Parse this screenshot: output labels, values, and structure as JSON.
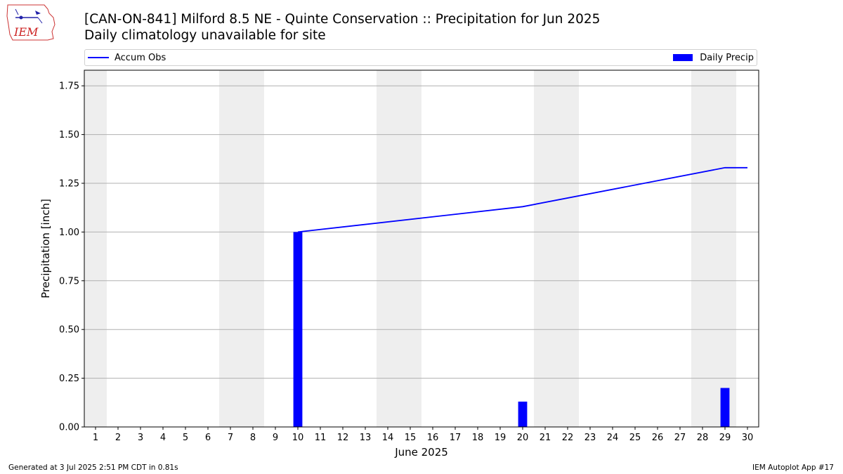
{
  "header": {
    "logo_text": "IEM",
    "title": "[CAN-ON-841] Milford 8.5 NE - Quinte Conservation :: Precipitation for Jun 2025",
    "subtitle": "Daily climatology unavailable for site"
  },
  "legend": {
    "line_label": "Accum Obs",
    "bar_label": "Daily Precip"
  },
  "footer": {
    "left": "Generated at 3 Jul 2025 2:51 PM CDT in 0.81s",
    "right": "IEM Autoplot App #17"
  },
  "colors": {
    "series": "#0000ff",
    "weekend_shade": "#eeeeee",
    "grid": "#b0b0b0"
  },
  "chart_data": {
    "type": "bar",
    "xlabel": "June 2025",
    "ylabel": "Precipitation [inch]",
    "x": [
      1,
      2,
      3,
      4,
      5,
      6,
      7,
      8,
      9,
      10,
      11,
      12,
      13,
      14,
      15,
      16,
      17,
      18,
      19,
      20,
      21,
      22,
      23,
      24,
      25,
      26,
      27,
      28,
      29,
      30
    ],
    "xlim": [
      0.5,
      30.5
    ],
    "ylim": [
      0,
      1.83
    ],
    "yticks": [
      0,
      0.25,
      0.5,
      0.75,
      1.0,
      1.25,
      1.5,
      1.75
    ],
    "ytick_labels": [
      "0.00",
      "0.25",
      "0.50",
      "0.75",
      "1.00",
      "1.25",
      "1.50",
      "1.75"
    ],
    "grid": "y",
    "legend_position": "top",
    "weekend_days": [
      1,
      7,
      8,
      14,
      15,
      21,
      22,
      28,
      29
    ],
    "series": [
      {
        "name": "Daily Precip",
        "type": "bar",
        "x": [
          10,
          20,
          29
        ],
        "values": [
          1.0,
          0.13,
          0.2
        ]
      },
      {
        "name": "Accum Obs",
        "type": "line",
        "x": [
          10,
          20,
          29,
          30
        ],
        "values": [
          1.0,
          1.13,
          1.33,
          1.33
        ]
      }
    ]
  }
}
